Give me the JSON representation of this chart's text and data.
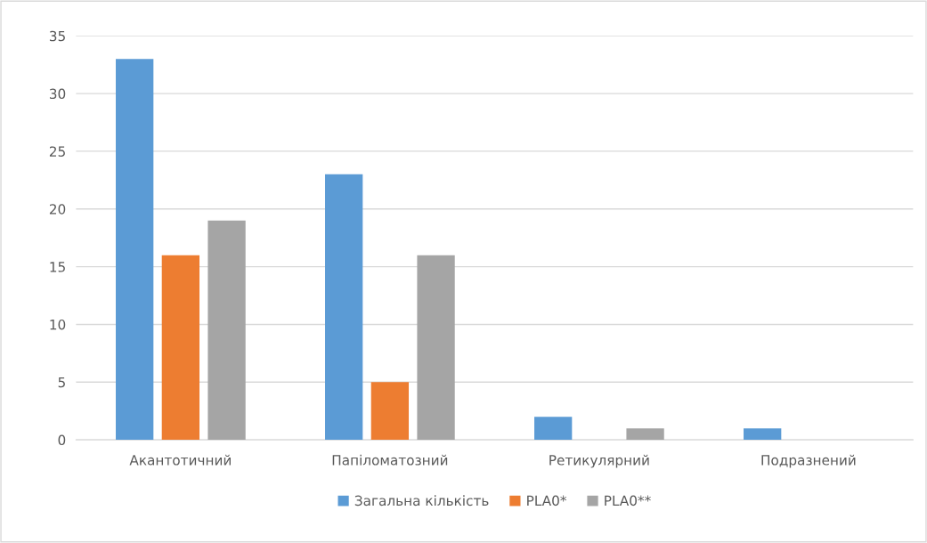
{
  "chart_data": {
    "type": "bar",
    "categories": [
      "Акантотичний",
      "Папіломатозний",
      "Ретикулярний",
      "Подразнений"
    ],
    "series": [
      {
        "name": "Загальна кількість",
        "color": "#5b9bd5",
        "values": [
          33,
          23,
          2,
          1
        ]
      },
      {
        "name": "PLA0*",
        "color": "#ed7d31",
        "values": [
          16,
          5,
          0,
          0
        ]
      },
      {
        "name": "PLA0**",
        "color": "#a5a5a5",
        "values": [
          19,
          16,
          1,
          0
        ]
      }
    ],
    "ylim": [
      0,
      35
    ],
    "yticks": [
      0,
      5,
      10,
      15,
      20,
      25,
      30,
      35
    ],
    "grid": "y",
    "legend": "bottom"
  }
}
